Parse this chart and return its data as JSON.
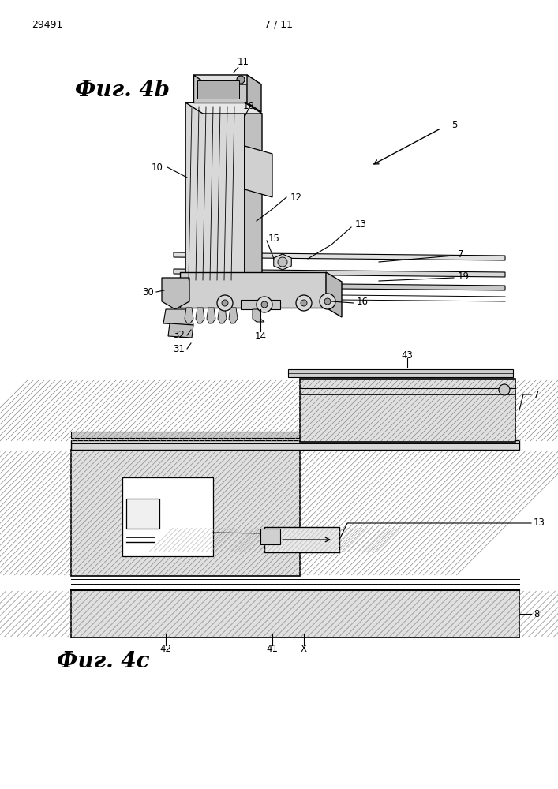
{
  "bg_color": "#ffffff",
  "page_num_left": "29491",
  "page_num_center": "7 / 11",
  "fig4b_label": "Фиг. 4b",
  "fig4c_label": "Фиг. 4c",
  "line_color": "#000000",
  "gray1": "#e8e8e8",
  "gray2": "#d0d0d0",
  "gray3": "#b0b0b0",
  "gray4": "#909090"
}
